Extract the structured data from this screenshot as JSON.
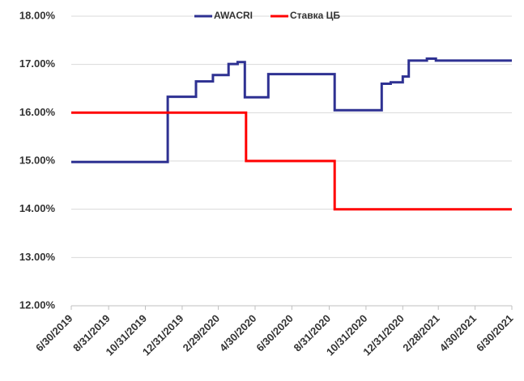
{
  "chart_data": {
    "type": "line",
    "series": [
      {
        "name": "AWACRI",
        "color": "#2e3192",
        "x": [
          "2019-06-30",
          "2019-12-07",
          "2019-12-07",
          "2020-01-23",
          "2020-01-23",
          "2020-02-20",
          "2020-02-20",
          "2020-03-17",
          "2020-03-17",
          "2020-04-01",
          "2020-04-01",
          "2020-04-13",
          "2020-04-13",
          "2020-05-22",
          "2020-05-22",
          "2020-09-09",
          "2020-09-09",
          "2020-11-26",
          "2020-11-26",
          "2020-12-11",
          "2020-12-11",
          "2020-12-31",
          "2020-12-31",
          "2021-01-10",
          "2021-01-10",
          "2021-02-09",
          "2021-02-09",
          "2021-02-24",
          "2021-02-24",
          "2021-06-30"
        ],
        "values": [
          14.98,
          14.98,
          16.33,
          16.33,
          16.65,
          16.65,
          16.78,
          16.78,
          17.01,
          17.01,
          17.05,
          17.05,
          16.32,
          16.32,
          16.8,
          16.8,
          16.05,
          16.05,
          16.6,
          16.6,
          16.63,
          16.63,
          16.75,
          16.75,
          17.08,
          17.08,
          17.12,
          17.12,
          17.08,
          17.08
        ]
      },
      {
        "name": "Ставка ЦБ",
        "color": "#ff0000",
        "x": [
          "2019-06-30",
          "2020-04-15",
          "2020-04-15",
          "2020-09-09",
          "2020-09-09",
          "2021-06-30"
        ],
        "values": [
          16,
          16,
          15,
          15,
          14,
          14
        ]
      }
    ],
    "xlim": [
      "2019-06-30",
      "2021-06-30"
    ],
    "xticks": [
      {
        "value": "2019-06-30",
        "label": "6/30/2019"
      },
      {
        "value": "2019-08-31",
        "label": "8/31/2019"
      },
      {
        "value": "2019-10-31",
        "label": "10/31/2019"
      },
      {
        "value": "2019-12-31",
        "label": "12/31/2019"
      },
      {
        "value": "2020-02-29",
        "label": "2/29/2020"
      },
      {
        "value": "2020-04-30",
        "label": "4/30/2020"
      },
      {
        "value": "2020-06-30",
        "label": "6/30/2020"
      },
      {
        "value": "2020-08-31",
        "label": "8/31/2020"
      },
      {
        "value": "2020-10-31",
        "label": "10/31/2020"
      },
      {
        "value": "2020-12-31",
        "label": "12/31/2020"
      },
      {
        "value": "2021-02-28",
        "label": "2/28/2021"
      },
      {
        "value": "2021-04-30",
        "label": "4/30/2021"
      },
      {
        "value": "2021-06-30",
        "label": "6/30/2021"
      }
    ],
    "ylim": [
      12,
      18
    ],
    "yticks": [
      {
        "value": 12,
        "label": "12.00%"
      },
      {
        "value": 13,
        "label": "13.00%"
      },
      {
        "value": 14,
        "label": "14.00%"
      },
      {
        "value": 15,
        "label": "15.00%"
      },
      {
        "value": 16,
        "label": "16.00%"
      },
      {
        "value": 17,
        "label": "17.00%"
      },
      {
        "value": 18,
        "label": "18.00%"
      }
    ],
    "grid": true,
    "legend": "top"
  }
}
